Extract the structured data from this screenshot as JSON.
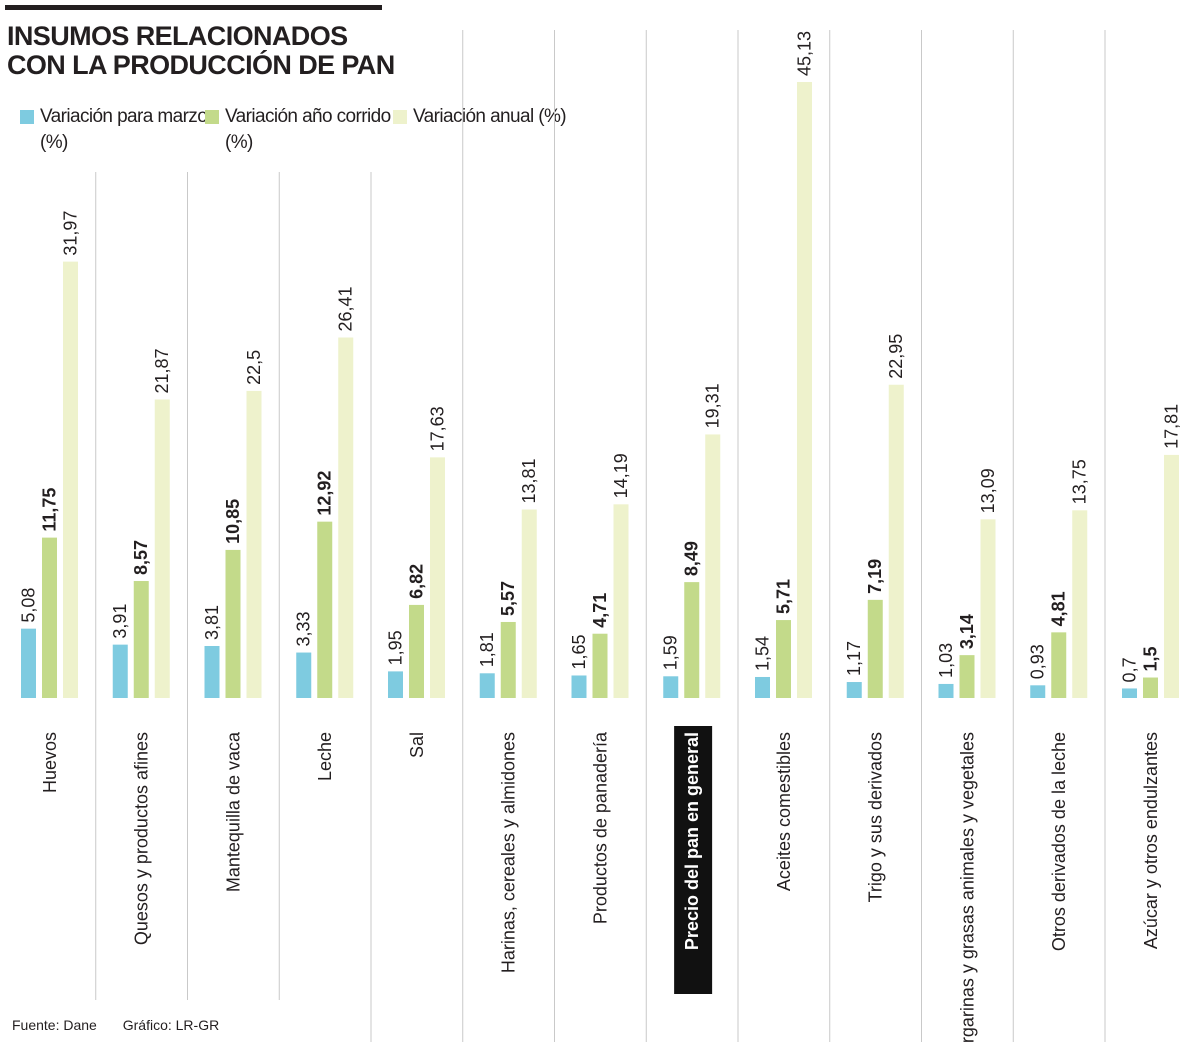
{
  "header": {
    "title_line1": "INSUMOS RELACIONADOS",
    "title_line2": "CON LA PRODUCCIÓN DE PAN"
  },
  "legend": [
    {
      "label": "Variación para marzo (%)",
      "color": "#7ecbe0"
    },
    {
      "label": "Variación año corrido (%)",
      "color": "#c3da8a"
    },
    {
      "label": "Variación anual (%)",
      "color": "#eef2cc"
    }
  ],
  "footer": {
    "source": "Fuente: Dane",
    "credit": "Gráfico: LR-GR"
  },
  "chart_data": {
    "type": "bar",
    "highlight_category": "Precio del pan en general",
    "categories": [
      "Huevos",
      "Quesos y productos afines",
      "Mantequilla de vaca",
      "Leche",
      "Sal",
      "Harinas, cereales y almidones",
      "Productos de panadería",
      "Precio del pan en general",
      "Aceites comestibles",
      "Trigo y sus derivados",
      "Margarinas y grasas animales y vegetales",
      "Otros derivados de la leche",
      "Azúcar y otros endulzantes"
    ],
    "series": [
      {
        "name": "Variación para marzo (%)",
        "color": "#7ecbe0",
        "bold_labels": false,
        "values": [
          5.08,
          3.91,
          3.81,
          3.33,
          1.95,
          1.81,
          1.65,
          1.59,
          1.54,
          1.17,
          1.03,
          0.93,
          0.7
        ],
        "labels": [
          "5,08",
          "3,91",
          "3,81",
          "3,33",
          "1,95",
          "1,81",
          "1,65",
          "1,59",
          "1,54",
          "1,17",
          "1,03",
          "0,93",
          "0,7"
        ]
      },
      {
        "name": "Variación año corrido (%)",
        "color": "#c3da8a",
        "bold_labels": true,
        "values": [
          11.75,
          8.57,
          10.85,
          12.92,
          6.82,
          5.57,
          4.71,
          8.49,
          5.71,
          7.19,
          3.14,
          4.81,
          1.5
        ],
        "labels": [
          "11,75",
          "8,57",
          "10,85",
          "12,92",
          "6,82",
          "5,57",
          "4,71",
          "8,49",
          "5,71",
          "7,19",
          "3,14",
          "4,81",
          "1,5"
        ]
      },
      {
        "name": "Variación anual (%)",
        "color": "#eef2cc",
        "bold_labels": false,
        "values": [
          31.97,
          21.87,
          22.5,
          26.41,
          17.63,
          13.81,
          14.19,
          19.31,
          45.13,
          22.95,
          13.09,
          13.75,
          17.81
        ],
        "labels": [
          "31,97",
          "21,87",
          "22,5",
          "26,41",
          "17,63",
          "13,81",
          "14,19",
          "19,31",
          "45,13",
          "22,95",
          "13,09",
          "13,75",
          "17,81"
        ]
      }
    ],
    "ylim": [
      0,
      45.13
    ],
    "grid": false,
    "legend_position": "top-left"
  }
}
